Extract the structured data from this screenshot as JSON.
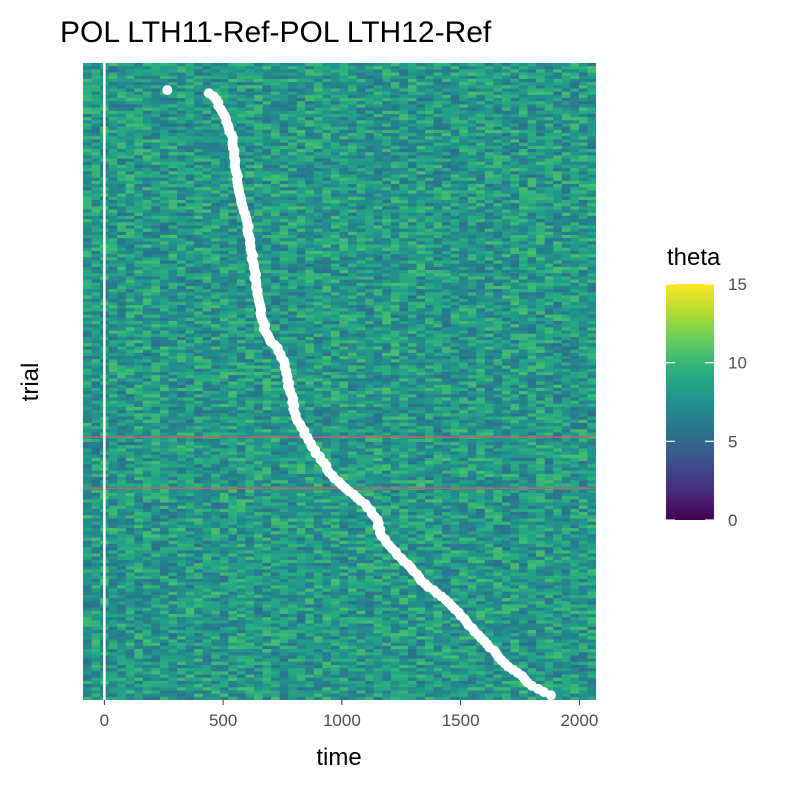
{
  "chart_data": {
    "type": "heatmap",
    "title": "POL LTH11-Ref-POL LTH12-Ref",
    "xlabel": "time",
    "ylabel": "trial",
    "xlim": [
      -90,
      2070
    ],
    "x_ticks": [
      "0",
      "500",
      "1000",
      "1500",
      "2000"
    ],
    "x_tick_values": [
      0,
      500,
      1000,
      1500,
      2000
    ],
    "trial_count": 200,
    "fill_variable": "theta",
    "fill_scale": "viridis",
    "fill_range": [
      0,
      15
    ],
    "typical_fill": 8,
    "legend": {
      "title": "theta",
      "ticks": [
        "0",
        "5",
        "10",
        "15"
      ],
      "tick_values": [
        0,
        5,
        10,
        15
      ],
      "position": "right"
    },
    "vertical_line_x": 0,
    "horizontal_lines": [
      {
        "trial": 82,
        "color": "#b06a6a"
      },
      {
        "trial": 66,
        "color": "#b06a6a"
      }
    ],
    "points": {
      "color": "#ffffff",
      "description": "response time per trial",
      "x": [
        265,
        440,
        460,
        490,
        520,
        540,
        550,
        565,
        580,
        600,
        610,
        620,
        630,
        640,
        650,
        660,
        680,
        700,
        730,
        760,
        770,
        780,
        790,
        800,
        830,
        870,
        910,
        960,
        1000,
        1050,
        1100,
        1150,
        1160,
        1200,
        1250,
        1300,
        1350,
        1400,
        1450,
        1500,
        1550,
        1600,
        1650,
        1700,
        1760,
        1800,
        1850,
        1880
      ],
      "y": [
        191,
        190,
        189,
        185,
        180,
        175,
        168,
        160,
        155,
        150,
        145,
        140,
        135,
        130,
        125,
        120,
        115,
        112,
        110,
        105,
        100,
        97,
        95,
        90,
        85,
        80,
        75,
        70,
        67,
        64,
        61,
        56,
        52,
        48,
        44,
        40,
        36,
        33,
        30,
        26,
        22,
        18,
        14,
        10,
        7,
        4,
        2,
        1
      ]
    }
  }
}
